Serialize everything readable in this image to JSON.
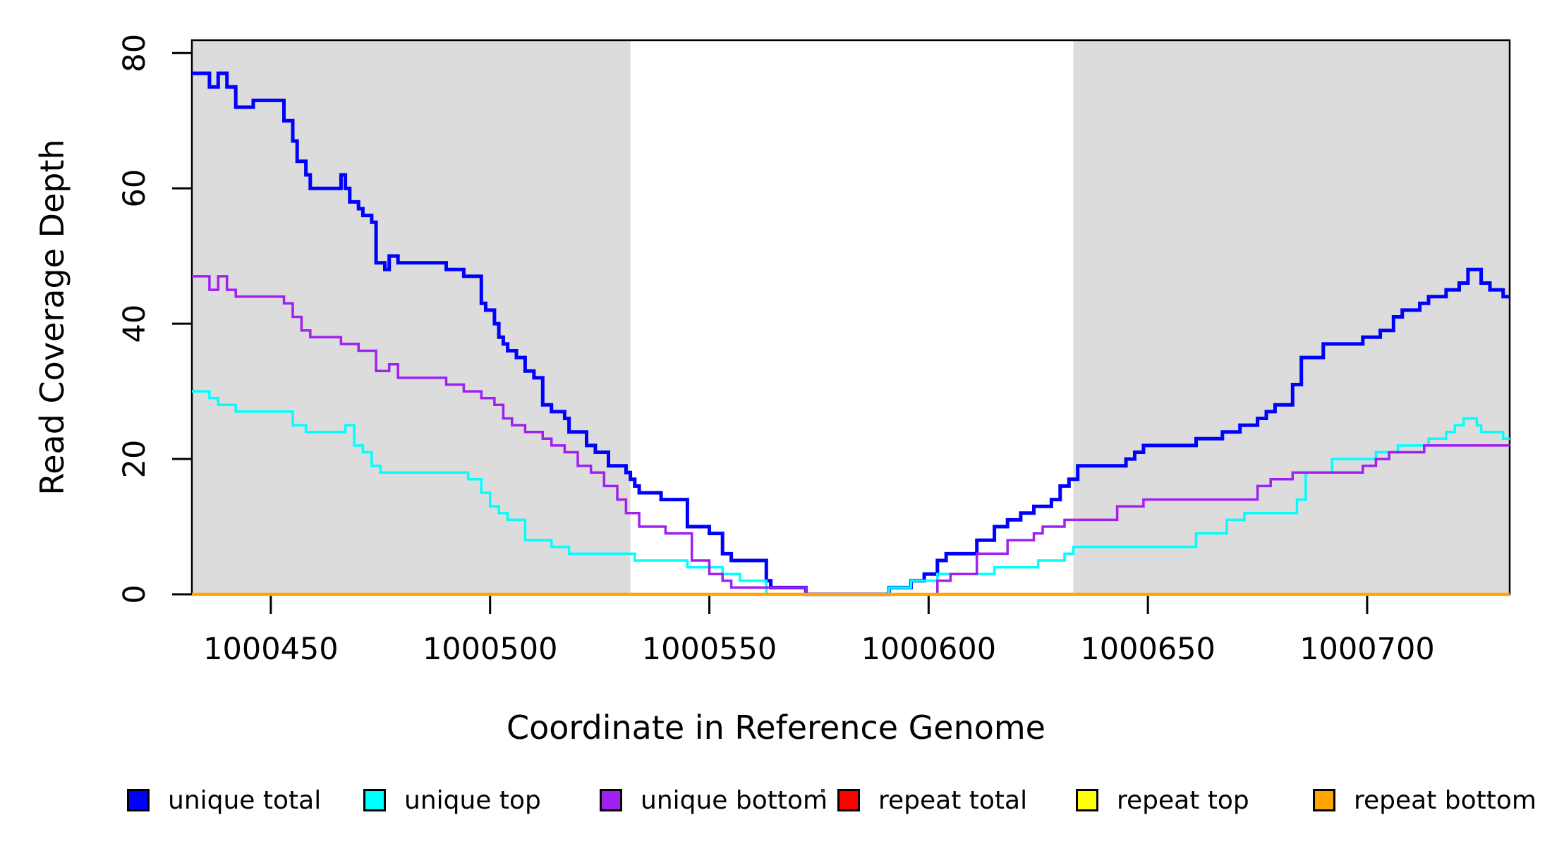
{
  "axes": {
    "x_title": "Coordinate in Reference Genome",
    "y_title": "Read Coverage Depth"
  },
  "chart_data": {
    "type": "line",
    "subtype": "step-after",
    "title": "",
    "xlabel": "Coordinate in Reference Genome",
    "ylabel": "Read Coverage Depth",
    "xlim": [
      1000432,
      1000732.5
    ],
    "ylim": [
      0,
      81.9
    ],
    "grid": false,
    "x_ticks": [
      1000450,
      1000500,
      1000550,
      1000600,
      1000650,
      1000700
    ],
    "x_tick_labels": [
      "1000450",
      "1000500",
      "1000550",
      "1000600",
      "1000650",
      "1000700"
    ],
    "y_ticks": [
      0,
      20,
      40,
      60,
      80
    ],
    "y_tick_labels": [
      "0",
      "20",
      "40",
      "60",
      "80"
    ],
    "shaded_regions": [
      {
        "x0": 1000432,
        "x1": 1000532,
        "color": "#DCDCDC"
      },
      {
        "x0": 1000633,
        "x1": 1000732.5,
        "color": "#DCDCDC"
      }
    ],
    "legend_position": "bottom",
    "series": [
      {
        "name": "unique total",
        "color": "#0000FF",
        "width": 5,
        "points": [
          [
            1000432,
            77
          ],
          [
            1000436,
            75
          ],
          [
            1000438,
            77
          ],
          [
            1000440,
            75
          ],
          [
            1000442,
            72
          ],
          [
            1000446,
            73
          ],
          [
            1000453,
            70
          ],
          [
            1000455,
            67
          ],
          [
            1000456,
            64
          ],
          [
            1000458,
            62
          ],
          [
            1000459,
            60
          ],
          [
            1000466,
            62
          ],
          [
            1000467,
            60
          ],
          [
            1000468,
            58
          ],
          [
            1000470,
            57
          ],
          [
            1000471,
            56
          ],
          [
            1000473,
            55
          ],
          [
            1000474,
            49
          ],
          [
            1000476,
            48
          ],
          [
            1000477,
            50
          ],
          [
            1000479,
            49
          ],
          [
            1000490,
            48
          ],
          [
            1000494,
            47
          ],
          [
            1000498,
            43
          ],
          [
            1000499,
            42
          ],
          [
            1000501,
            40
          ],
          [
            1000502,
            38
          ],
          [
            1000503,
            37
          ],
          [
            1000504,
            36
          ],
          [
            1000506,
            35
          ],
          [
            1000508,
            33
          ],
          [
            1000510,
            32
          ],
          [
            1000512,
            28
          ],
          [
            1000514,
            27
          ],
          [
            1000517,
            26
          ],
          [
            1000518,
            24
          ],
          [
            1000522,
            22
          ],
          [
            1000524,
            21
          ],
          [
            1000527,
            19
          ],
          [
            1000531,
            18
          ],
          [
            1000532,
            17
          ],
          [
            1000533,
            16
          ],
          [
            1000534,
            15
          ],
          [
            1000539,
            14
          ],
          [
            1000545,
            10
          ],
          [
            1000550,
            9
          ],
          [
            1000553,
            6
          ],
          [
            1000555,
            5
          ],
          [
            1000563,
            2
          ],
          [
            1000564,
            1
          ],
          [
            1000572,
            0
          ],
          [
            1000591,
            1
          ],
          [
            1000596,
            2
          ],
          [
            1000599,
            3
          ],
          [
            1000602,
            5
          ],
          [
            1000604,
            6
          ],
          [
            1000611,
            8
          ],
          [
            1000615,
            10
          ],
          [
            1000618,
            11
          ],
          [
            1000621,
            12
          ],
          [
            1000624,
            13
          ],
          [
            1000628,
            14
          ],
          [
            1000630,
            16
          ],
          [
            1000632,
            17
          ],
          [
            1000634,
            19
          ],
          [
            1000645,
            20
          ],
          [
            1000647,
            21
          ],
          [
            1000649,
            22
          ],
          [
            1000661,
            23
          ],
          [
            1000667,
            24
          ],
          [
            1000671,
            25
          ],
          [
            1000675,
            26
          ],
          [
            1000677,
            27
          ],
          [
            1000679,
            28
          ],
          [
            1000683,
            31
          ],
          [
            1000685,
            35
          ],
          [
            1000690,
            37
          ],
          [
            1000699,
            38
          ],
          [
            1000703,
            39
          ],
          [
            1000706,
            41
          ],
          [
            1000708,
            42
          ],
          [
            1000712,
            43
          ],
          [
            1000714,
            44
          ],
          [
            1000718,
            45
          ],
          [
            1000721,
            46
          ],
          [
            1000723,
            48
          ],
          [
            1000726,
            46
          ],
          [
            1000728,
            45
          ],
          [
            1000731,
            44
          ]
        ]
      },
      {
        "name": "unique top",
        "color": "#00FFFF",
        "width": 3.5,
        "points": [
          [
            1000432,
            30
          ],
          [
            1000436,
            29
          ],
          [
            1000438,
            28
          ],
          [
            1000442,
            27
          ],
          [
            1000455,
            25
          ],
          [
            1000458,
            24
          ],
          [
            1000467,
            25
          ],
          [
            1000469,
            22
          ],
          [
            1000471,
            21
          ],
          [
            1000473,
            19
          ],
          [
            1000475,
            18
          ],
          [
            1000495,
            17
          ],
          [
            1000498,
            15
          ],
          [
            1000500,
            13
          ],
          [
            1000502,
            12
          ],
          [
            1000504,
            11
          ],
          [
            1000508,
            8
          ],
          [
            1000514,
            7
          ],
          [
            1000518,
            6
          ],
          [
            1000533,
            5
          ],
          [
            1000545,
            4
          ],
          [
            1000553,
            3
          ],
          [
            1000557,
            2
          ],
          [
            1000563,
            0
          ],
          [
            1000591,
            1
          ],
          [
            1000596,
            2
          ],
          [
            1000602,
            3
          ],
          [
            1000615,
            4
          ],
          [
            1000625,
            5
          ],
          [
            1000631,
            6
          ],
          [
            1000633,
            7
          ],
          [
            1000661,
            9
          ],
          [
            1000668,
            11
          ],
          [
            1000672,
            12
          ],
          [
            1000684,
            14
          ],
          [
            1000686,
            18
          ],
          [
            1000692,
            20
          ],
          [
            1000702,
            21
          ],
          [
            1000707,
            22
          ],
          [
            1000714,
            23
          ],
          [
            1000718,
            24
          ],
          [
            1000720,
            25
          ],
          [
            1000722,
            26
          ],
          [
            1000725,
            25
          ],
          [
            1000726,
            24
          ],
          [
            1000731,
            23
          ]
        ]
      },
      {
        "name": "unique bottom",
        "color": "#A020F0",
        "width": 3.5,
        "points": [
          [
            1000432,
            47
          ],
          [
            1000436,
            45
          ],
          [
            1000438,
            47
          ],
          [
            1000440,
            45
          ],
          [
            1000442,
            44
          ],
          [
            1000453,
            43
          ],
          [
            1000455,
            41
          ],
          [
            1000457,
            39
          ],
          [
            1000459,
            38
          ],
          [
            1000466,
            37
          ],
          [
            1000470,
            36
          ],
          [
            1000474,
            33
          ],
          [
            1000477,
            34
          ],
          [
            1000479,
            32
          ],
          [
            1000490,
            31
          ],
          [
            1000494,
            30
          ],
          [
            1000498,
            29
          ],
          [
            1000501,
            28
          ],
          [
            1000503,
            26
          ],
          [
            1000505,
            25
          ],
          [
            1000508,
            24
          ],
          [
            1000512,
            23
          ],
          [
            1000514,
            22
          ],
          [
            1000517,
            21
          ],
          [
            1000520,
            19
          ],
          [
            1000523,
            18
          ],
          [
            1000526,
            16
          ],
          [
            1000529,
            14
          ],
          [
            1000531,
            12
          ],
          [
            1000534,
            10
          ],
          [
            1000540,
            9
          ],
          [
            1000546,
            5
          ],
          [
            1000550,
            3
          ],
          [
            1000553,
            2
          ],
          [
            1000555,
            1
          ],
          [
            1000572,
            0
          ],
          [
            1000602,
            2
          ],
          [
            1000605,
            3
          ],
          [
            1000611,
            6
          ],
          [
            1000618,
            8
          ],
          [
            1000624,
            9
          ],
          [
            1000626,
            10
          ],
          [
            1000631,
            11
          ],
          [
            1000643,
            13
          ],
          [
            1000649,
            14
          ],
          [
            1000675,
            16
          ],
          [
            1000678,
            17
          ],
          [
            1000683,
            18
          ],
          [
            1000699,
            19
          ],
          [
            1000702,
            20
          ],
          [
            1000705,
            21
          ],
          [
            1000713,
            22
          ]
        ]
      },
      {
        "name": "repeat total",
        "color": "#FF0000",
        "width": 3.5,
        "points": [
          [
            1000432,
            0
          ]
        ]
      },
      {
        "name": "repeat top",
        "color": "#FFFF00",
        "width": 3.5,
        "points": [
          [
            1000432,
            0
          ]
        ]
      },
      {
        "name": "repeat bottom",
        "color": "#FFA500",
        "width": 4.5,
        "points": [
          [
            1000432,
            0
          ]
        ]
      }
    ]
  },
  "legend": {
    "items": [
      {
        "label": "unique total",
        "color": "#0000FF"
      },
      {
        "label": "unique top",
        "color": "#00FFFF"
      },
      {
        "label": "unique bottom",
        "color": "#A020F0"
      },
      {
        "label": "repeat total",
        "color": "#FF0000"
      },
      {
        "label": "repeat top",
        "color": "#FFFF00"
      },
      {
        "label": "repeat bottom",
        "color": "#FFA500"
      }
    ]
  }
}
